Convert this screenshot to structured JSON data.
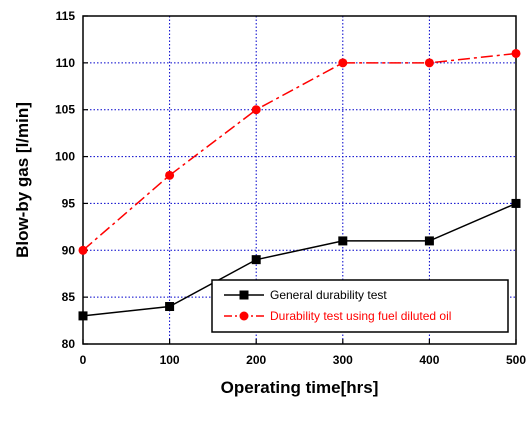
{
  "chart_data": {
    "type": "line",
    "title": "",
    "xlabel": "Operating time[hrs]",
    "ylabel": "Blow-by gas [l/min]",
    "xlim": [
      0,
      500
    ],
    "ylim": [
      80,
      115
    ],
    "xticks": [
      0,
      100,
      200,
      300,
      400,
      500
    ],
    "yticks": [
      80,
      85,
      90,
      95,
      100,
      105,
      110,
      115
    ],
    "grid": true,
    "legend_position": "bottom-right",
    "series": [
      {
        "name": "General durability test",
        "color": "#000000",
        "line_style": "solid",
        "marker": "square",
        "x": [
          0,
          100,
          200,
          300,
          400,
          500
        ],
        "y": [
          83,
          84,
          89,
          91,
          91,
          95
        ]
      },
      {
        "name": "Durability test using fuel diluted oil",
        "color": "#ff0000",
        "line_style": "dash-dot",
        "marker": "circle",
        "x": [
          0,
          100,
          200,
          300,
          400,
          500
        ],
        "y": [
          90,
          98,
          105,
          110,
          110,
          111
        ]
      }
    ]
  }
}
